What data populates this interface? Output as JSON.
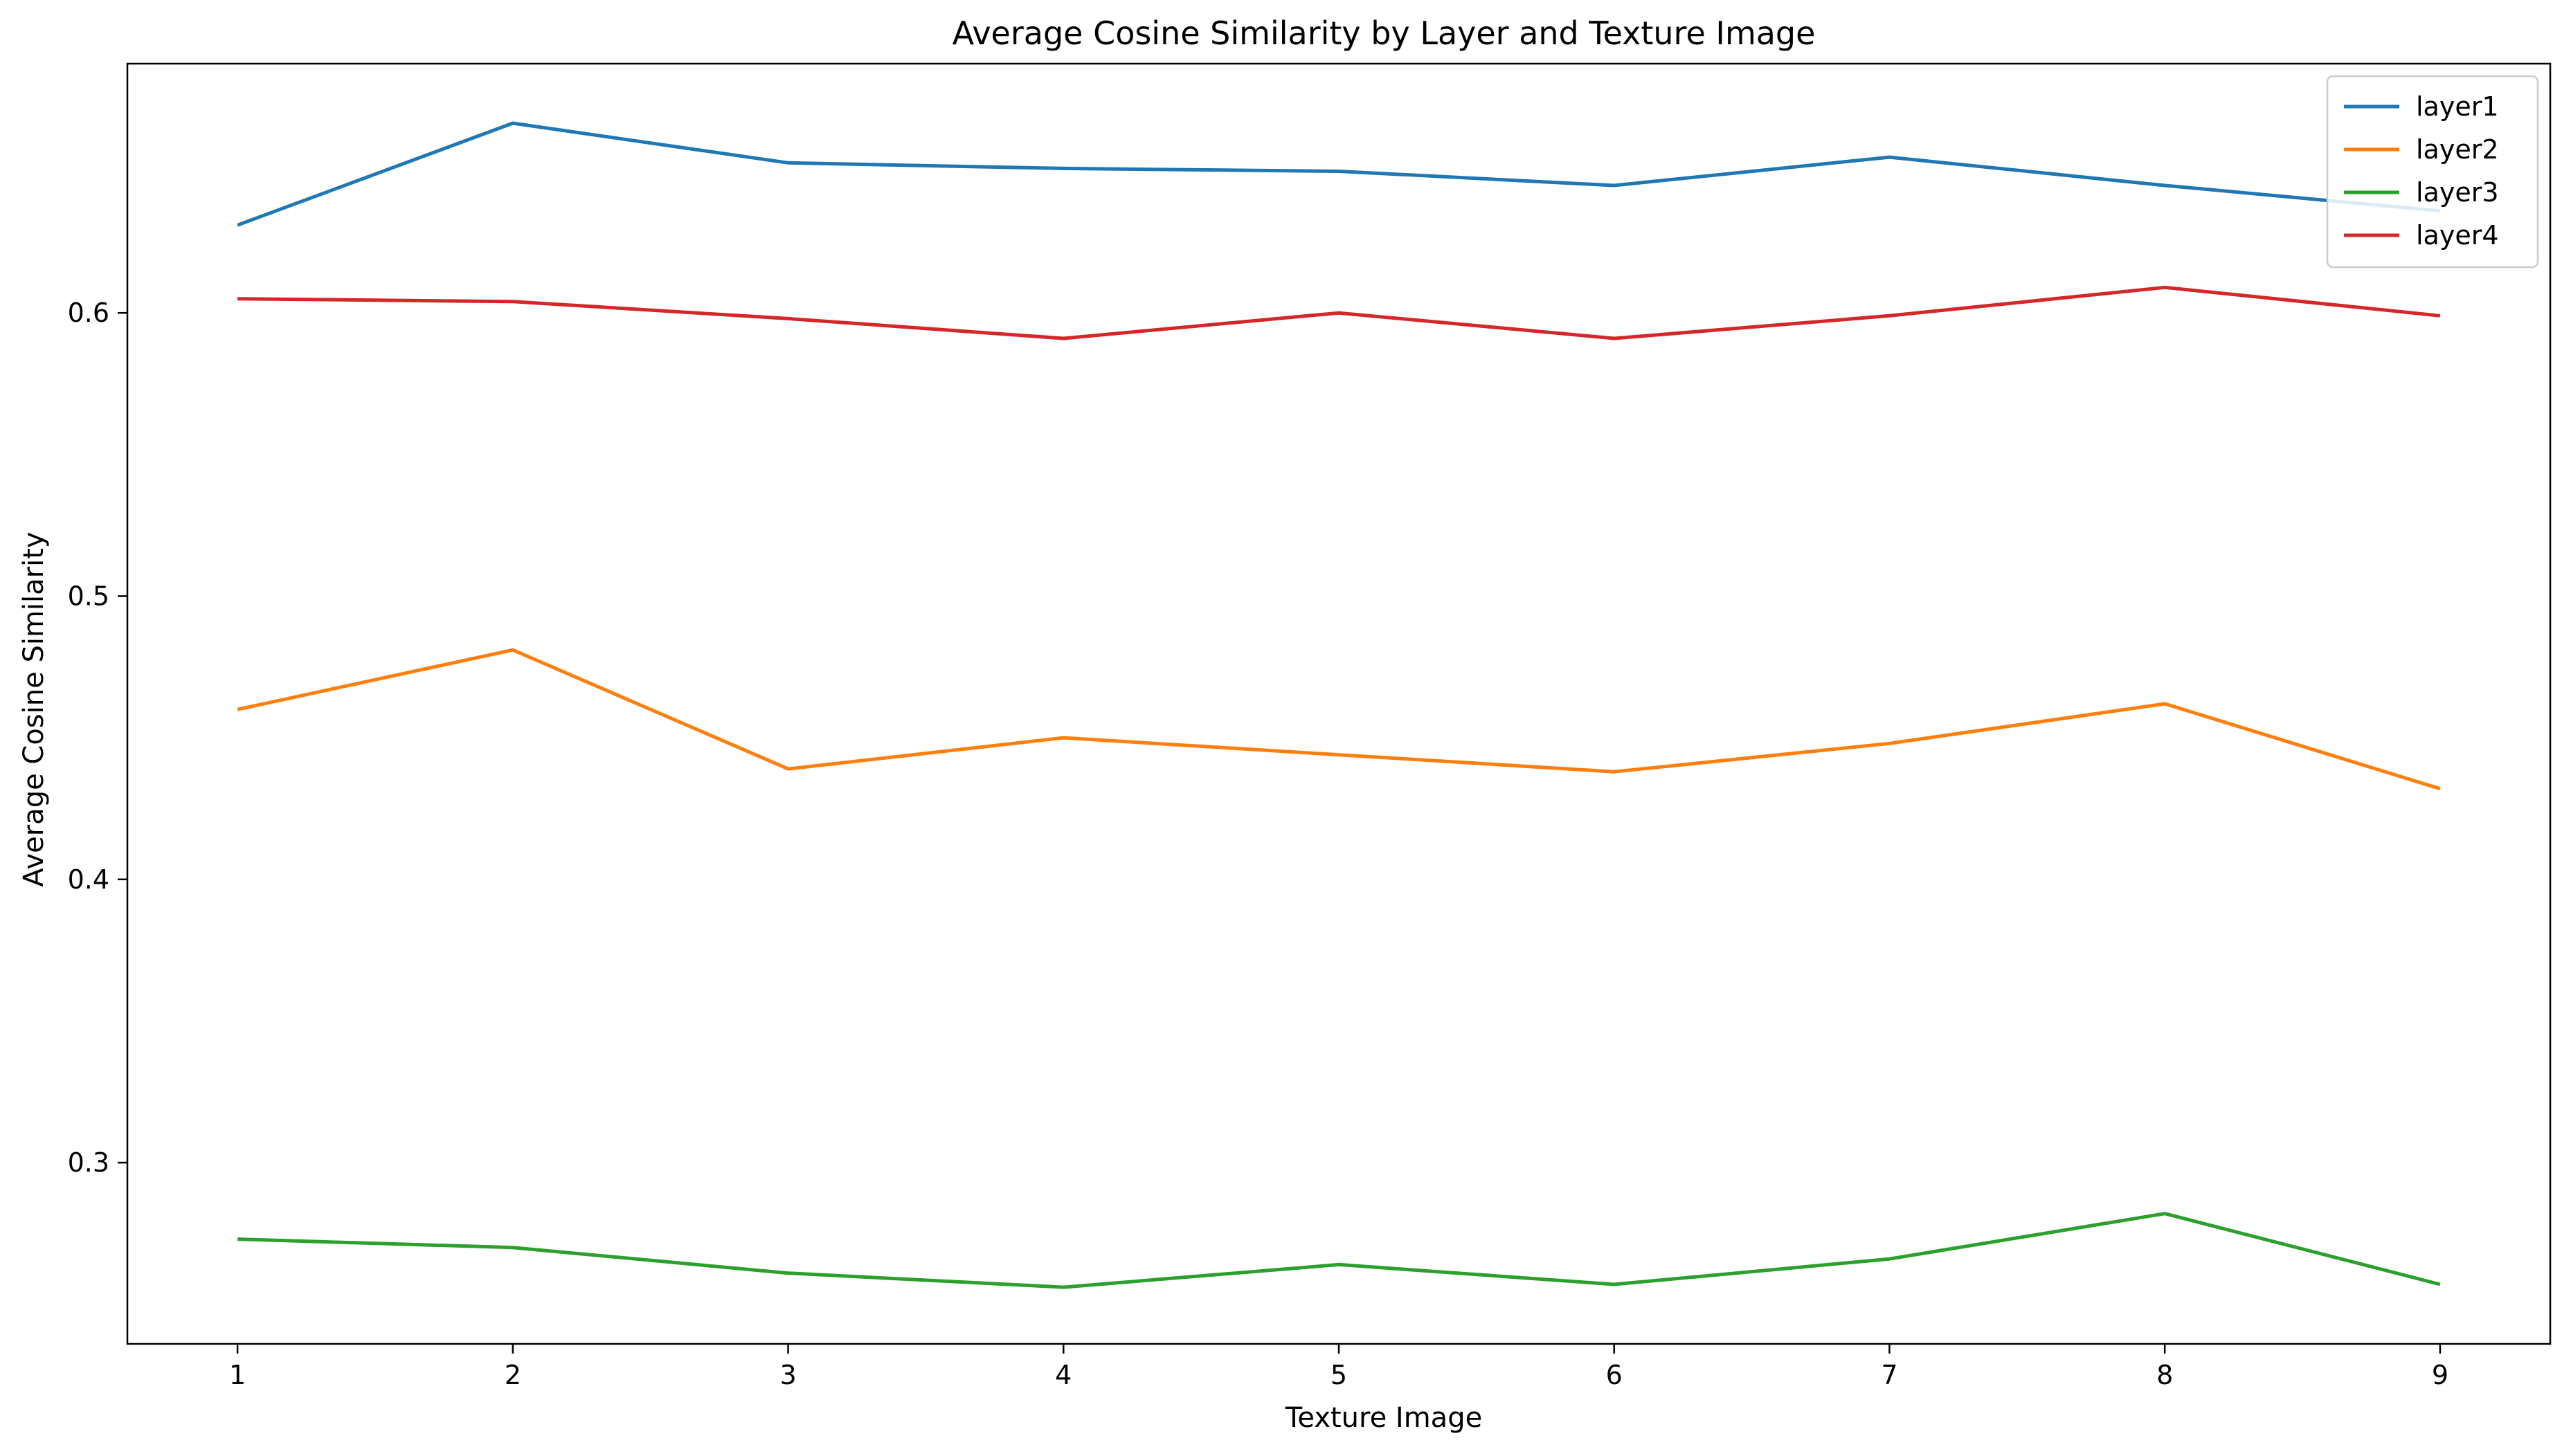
{
  "chart_data": {
    "type": "line",
    "title": "Average Cosine Similarity by Layer and Texture Image",
    "xlabel": "Texture Image",
    "ylabel": "Average Cosine Similarity",
    "x": [
      1,
      2,
      3,
      4,
      5,
      6,
      7,
      8,
      9
    ],
    "xlim": [
      0.6,
      9.4
    ],
    "ylim": [
      0.236,
      0.688
    ],
    "xticks": [
      "1",
      "2",
      "3",
      "4",
      "5",
      "6",
      "7",
      "8",
      "9"
    ],
    "yticks": [
      {
        "value": 0.3,
        "label": "0.3"
      },
      {
        "value": 0.4,
        "label": "0.4"
      },
      {
        "value": 0.5,
        "label": "0.5"
      },
      {
        "value": 0.6,
        "label": "0.6"
      }
    ],
    "grid": false,
    "legend_position": "top-right",
    "series": [
      {
        "name": "layer1",
        "color": "#1f77b4",
        "values": [
          0.631,
          0.667,
          0.653,
          0.651,
          0.65,
          0.645,
          0.655,
          0.645,
          0.636
        ]
      },
      {
        "name": "layer2",
        "color": "#ff7f0e",
        "values": [
          0.46,
          0.481,
          0.439,
          0.45,
          0.444,
          0.438,
          0.448,
          0.462,
          0.432
        ]
      },
      {
        "name": "layer3",
        "color": "#2ca02c",
        "values": [
          0.273,
          0.27,
          0.261,
          0.256,
          0.264,
          0.257,
          0.266,
          0.282,
          0.257
        ]
      },
      {
        "name": "layer4",
        "color": "#d62728",
        "values": [
          0.605,
          0.604,
          0.598,
          0.591,
          0.6,
          0.591,
          0.599,
          0.609,
          0.599
        ]
      }
    ]
  }
}
